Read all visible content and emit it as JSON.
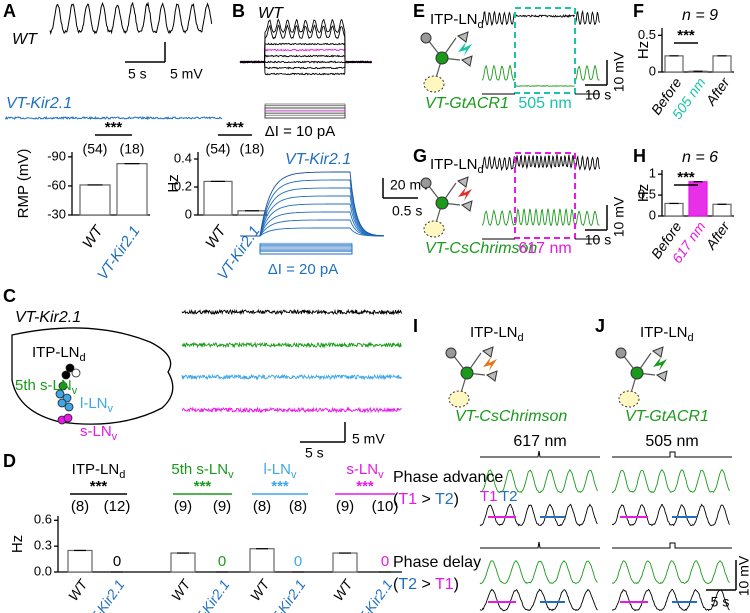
{
  "A": {
    "label": "A",
    "wt": "WT",
    "time_scale": "5 s",
    "volt_scale": "5 mV",
    "kir": "VT-Kir2.1",
    "rmp": {
      "type": "bar",
      "ylabel": "RMP (mV)",
      "categories": [
        "WT",
        "VT-Kir2.1"
      ],
      "values": [
        -61,
        -83
      ],
      "n_labels": [
        "(54)",
        "(18)"
      ],
      "significance": "***",
      "ylim": [
        -30,
        -95
      ],
      "yticks": [
        -90,
        -60,
        -30
      ]
    },
    "rate": {
      "type": "bar",
      "ylabel": "Hz",
      "categories": [
        "WT",
        "VT-Kir2.1"
      ],
      "values": [
        0.24,
        0.03
      ],
      "n_labels": [
        "(54)",
        "(18)"
      ],
      "significance": "***",
      "ylim": [
        0,
        0.45
      ],
      "yticks": [
        0,
        0.2,
        0.4
      ]
    }
  },
  "B": {
    "label": "B",
    "wt": "WT",
    "wt_step": "ΔI = 10 pA",
    "kir": "VT-Kir2.1",
    "volt_scale": "20 mV",
    "time_scale": "0.5 s",
    "kir_step": "ΔI = 20 pA"
  },
  "C": {
    "label": "C",
    "title": "VT-Kir2.1",
    "cells": [
      {
        "name": "ITP-LN",
        "sub": "d"
      },
      {
        "name": "5th s-LN",
        "sub": "v"
      },
      {
        "name": "l-LN",
        "sub": "v"
      },
      {
        "name": "s-LN",
        "sub": "v"
      }
    ],
    "time_scale": "5 s",
    "volt_scale": "5 mV"
  },
  "D": {
    "label": "D",
    "type": "bar",
    "ylabel": "Hz",
    "categories": [
      "WT",
      "VT-Kir2.1"
    ],
    "ylim": [
      0,
      0.65
    ],
    "yticks": [
      {
        "value": 0,
        "label": "0.0"
      },
      0.3,
      0.6
    ],
    "groups": [
      {
        "name": "ITP-LN",
        "sub": "d",
        "significance": "***",
        "n_labels": [
          "(8)",
          "(12)"
        ],
        "values": [
          0.25,
          0
        ]
      },
      {
        "name": "5th s-LN",
        "sub": "v",
        "significance": "***",
        "n_labels": [
          "(9)",
          "(9)"
        ],
        "values": [
          0.22,
          0
        ]
      },
      {
        "name": "l-LN",
        "sub": "v",
        "significance": "***",
        "n_labels": [
          "(8)",
          "(8)"
        ],
        "values": [
          0.27,
          0
        ]
      },
      {
        "name": "s-LN",
        "sub": "v",
        "significance": "***",
        "n_labels": [
          "(9)",
          "(10)"
        ],
        "values": [
          0.22,
          0
        ]
      }
    ]
  },
  "E": {
    "label": "E",
    "cell": {
      "name": "ITP-LN",
      "sub": "d"
    },
    "line": "VT-GtACR1",
    "light": "505 nm",
    "volt_scale": "10 mV",
    "time_scale": "10 s"
  },
  "F": {
    "label": "F",
    "n": "n = 9",
    "type": "bar",
    "ylabel": "Hz",
    "categories": [
      "Before",
      "505 nm",
      "After"
    ],
    "values": [
      0.22,
      0.01,
      0.22
    ],
    "significance": "***",
    "ylim": [
      0,
      0.6
    ],
    "yticks": [
      0,
      0.5
    ]
  },
  "G": {
    "label": "G",
    "cell": {
      "name": "ITP-LN",
      "sub": "d"
    },
    "line": "VT-CsChrimson",
    "light": "617 nm",
    "volt_scale": "10 mV",
    "time_scale": "10 s"
  },
  "H": {
    "label": "H",
    "n": "n = 6",
    "type": "bar",
    "ylabel": "Hz",
    "categories": [
      "Before",
      "617 nm",
      "After"
    ],
    "values": [
      0.3,
      0.82,
      0.28
    ],
    "significance": "***",
    "ylim": [
      0,
      1.1
    ],
    "yticks": [
      0,
      0.5,
      1
    ]
  },
  "I": {
    "label": "I",
    "cell": {
      "name": "ITP-LN",
      "sub": "d"
    },
    "line": "VT-CsChrimson",
    "light": "617 nm"
  },
  "J": {
    "label": "J",
    "cell": {
      "name": "ITP-LN",
      "sub": "d"
    },
    "line": "VT-GtACR1",
    "light": "505 nm"
  },
  "IJ": {
    "advance": "Phase advance",
    "advance_rule": [
      "(",
      "T1",
      " > ",
      "T2",
      ")"
    ],
    "delay": "Phase delay",
    "delay_rule": [
      "(",
      "T2",
      " > ",
      "T1",
      ")"
    ],
    "t1": "T1",
    "t2": "T2",
    "volt_scale": "10 mV",
    "time_scale": "5 s"
  }
}
